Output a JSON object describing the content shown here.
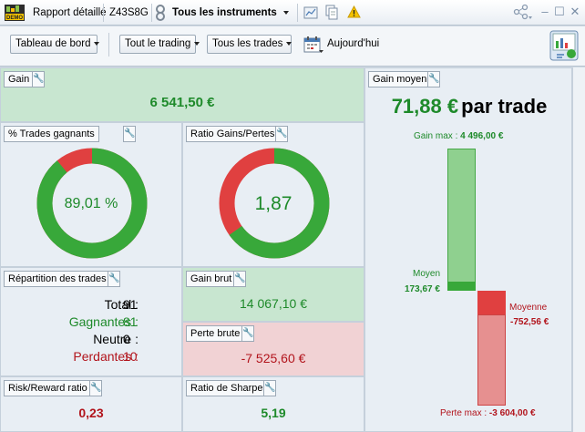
{
  "titlebar": {
    "app_label": "Rapport détaillé",
    "account": "Z43S8G",
    "instrument_filter": "Tous les instruments"
  },
  "toolbar": {
    "dashboard": "Tableau de bord",
    "trading_filter": "Tout le trading",
    "trades_filter": "Tous les trades",
    "date_label": "Aujourd'hui"
  },
  "gain": {
    "label": "Gain",
    "value": "6 541,50 €"
  },
  "win_rate": {
    "label": "% Trades gagnants",
    "value": "89,01 %",
    "fraction": 0.8901
  },
  "ratio": {
    "label": "Ratio Gains/Pertes",
    "value": "1,87",
    "fraction": 0.6516
  },
  "gain_moyen": {
    "label": "Gain moyen",
    "headline_value": "71,88 €",
    "headline_suffix": "par trade",
    "max_label": "Gain max :",
    "max_value": "4 496,00 €",
    "avg_label": "Moyen",
    "avg_value": "173,67 €",
    "loss_avg_label": "Moyenne",
    "loss_avg_value": "-752,56 €",
    "loss_max_label": "Perte max :",
    "loss_max_value": "-3 604,00 €",
    "max_gain_amount": 4496.0,
    "avg_gain_amount": 173.67,
    "avg_loss_amount": 752.56,
    "max_loss_amount": 3604.0
  },
  "repartition": {
    "label": "Répartition des trades",
    "total_label": "Total :",
    "total": "91",
    "wins_label": "Gagnantes :",
    "wins": "81",
    "neutral_label": "Neutre :",
    "neutral": "0",
    "losses_label": "Perdantes :",
    "losses": "10"
  },
  "gain_brut": {
    "label": "Gain brut",
    "value": "14 067,10 €"
  },
  "perte_brute": {
    "label": "Perte brute",
    "value": "-7 525,60 €"
  },
  "risk_reward": {
    "label": "Risk/Reward ratio",
    "value": "0,23"
  },
  "sharpe": {
    "label": "Ratio de Sharpe",
    "value": "5,19"
  },
  "colors": {
    "green": "#38a83a",
    "red": "#e04040",
    "panel": "#e8eef4",
    "gain_panel": "#c8e6d0",
    "loss_panel": "#f1d2d4"
  }
}
